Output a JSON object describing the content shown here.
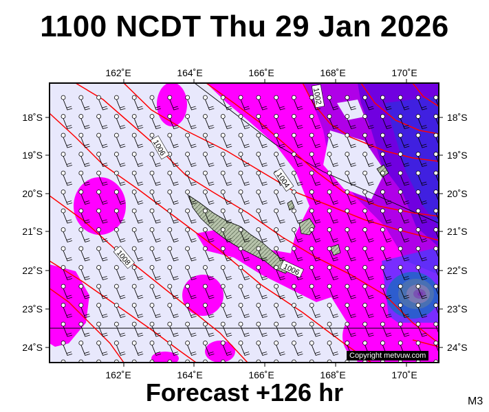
{
  "header": {
    "title": "1100 NCDT Thu 29 Jan 2026"
  },
  "footer": {
    "forecast": "Forecast +126 hr",
    "model": "M3"
  },
  "copyright": "Copyright metvuw.com",
  "map": {
    "lon_range": [
      160,
      171
    ],
    "lat_range": [
      -24.5,
      -17
    ],
    "lon_ticks": [
      "162˚E",
      "164˚E",
      "166˚E",
      "168˚E",
      "170˚E"
    ],
    "lat_ticks": [
      "18˚S",
      "19˚S",
      "20˚S",
      "21˚S",
      "22˚S",
      "23˚S",
      "24˚S"
    ],
    "isobar_labels": [
      "1002",
      "1004",
      "1006",
      "1008",
      "1006"
    ],
    "colors": {
      "background": "#e8e8fc",
      "rain_light": "#ff00ff",
      "rain_mid": "#a000e0",
      "rain_heavy": "#4010e0",
      "rain_extreme": "#00a000",
      "isobar": "#ff0000",
      "land": "#9aa88f"
    }
  }
}
